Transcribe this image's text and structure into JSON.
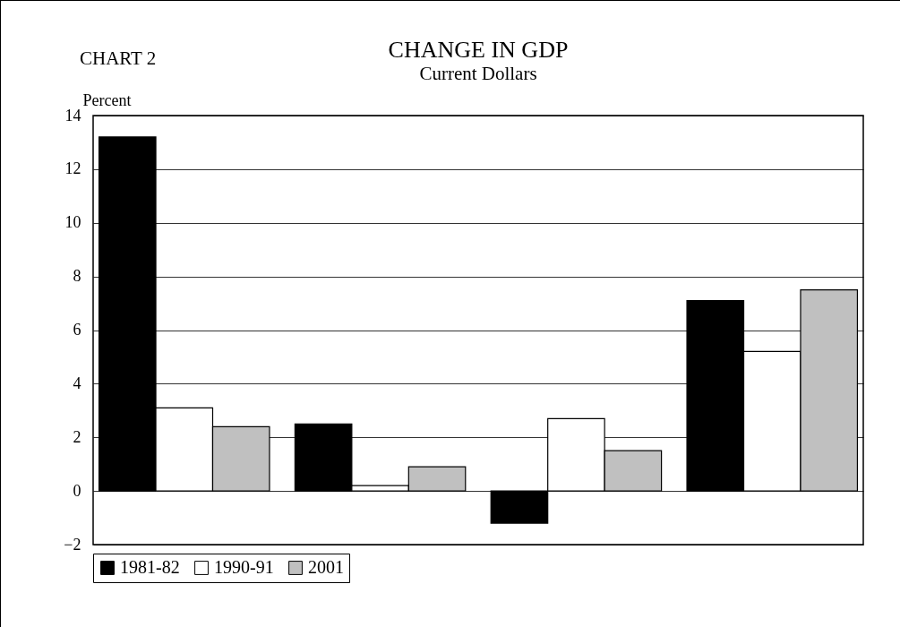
{
  "chart_data": {
    "type": "bar",
    "title": "CHANGE IN GDP",
    "subtitle": "Current Dollars",
    "ylabel": "Percent",
    "annotations": [
      "CHART 2"
    ],
    "categories": [
      null,
      null,
      null,
      null
    ],
    "series": [
      {
        "name": "1981-82",
        "color": "#000000",
        "values": [
          13.2,
          2.5,
          -1.2,
          7.1
        ]
      },
      {
        "name": "1990-91",
        "color": "#ffffff",
        "values": [
          3.1,
          0.2,
          2.7,
          5.2
        ]
      },
      {
        "name": "2001",
        "color": "#c0c0c0",
        "values": [
          2.4,
          0.9,
          1.5,
          7.5
        ]
      }
    ],
    "ylim": [
      -2,
      14
    ],
    "yticks": [
      -2,
      0,
      2,
      4,
      6,
      8,
      10,
      12,
      14
    ],
    "grid": "y",
    "legend": "bottom"
  }
}
